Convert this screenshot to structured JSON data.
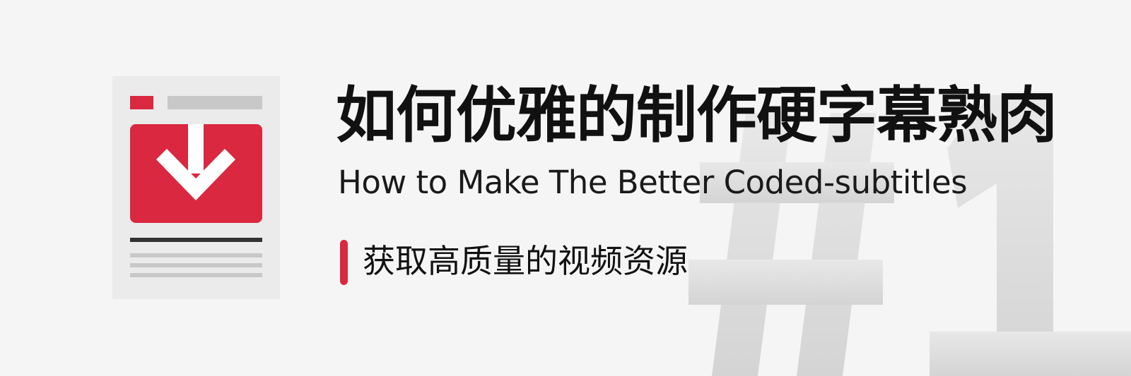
{
  "banner": {
    "title_cn": "如何优雅的制作硬字幕熟肉",
    "title_en": "How to Make The Better Coded-subtitles",
    "section_label": "获取高质量的视频资源",
    "background_mark": "#1"
  },
  "icons": {
    "document": "document-download-icon",
    "arrow": "arrow-down-icon"
  },
  "colors": {
    "background": "#f5f5f5",
    "accent": "#d9283f",
    "text": "#111111",
    "mark": "#dcdcdc",
    "doc_panel": "#ebebeb",
    "doc_lines": "#c8c8c8",
    "doc_rule": "#333333"
  }
}
